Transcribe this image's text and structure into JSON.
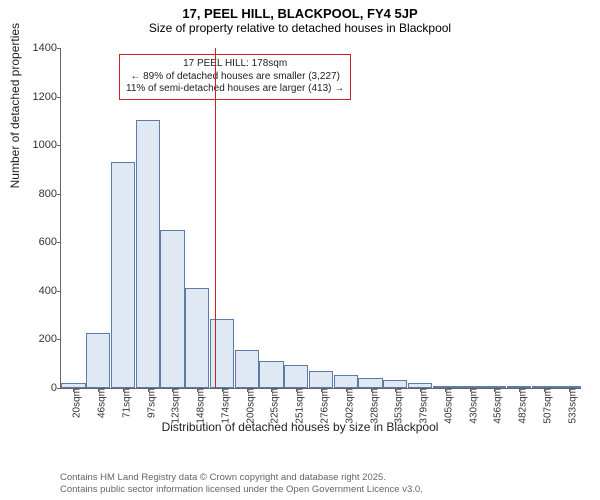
{
  "title_main": "17, PEEL HILL, BLACKPOOL, FY4 5JP",
  "title_sub": "Size of property relative to detached houses in Blackpool",
  "y_axis_label": "Number of detached properties",
  "x_axis_label": "Distribution of detached houses by size in Blackpool",
  "chart": {
    "type": "histogram",
    "ylim": [
      0,
      1400
    ],
    "ytick_step": 200,
    "bar_fill": "#e0e8f4",
    "bar_stroke": "#5b7ba8",
    "background": "#ffffff",
    "ref_line_color": "#cc2222",
    "ref_line_x_index": 6.2,
    "x_labels": [
      "20sqm",
      "46sqm",
      "71sqm",
      "97sqm",
      "123sqm",
      "148sqm",
      "174sqm",
      "200sqm",
      "225sqm",
      "251sqm",
      "276sqm",
      "302sqm",
      "328sqm",
      "353sqm",
      "379sqm",
      "405sqm",
      "430sqm",
      "456sqm",
      "482sqm",
      "507sqm",
      "533sqm"
    ],
    "values": [
      20,
      225,
      930,
      1105,
      650,
      410,
      285,
      155,
      110,
      95,
      70,
      55,
      40,
      35,
      20,
      10,
      5,
      5,
      3,
      2,
      3
    ]
  },
  "annotation": {
    "line1": "17 PEEL HILL: 178sqm",
    "line2": "← 89% of detached houses are smaller (3,227)",
    "line3": "11% of semi-detached houses are larger (413) →"
  },
  "footer": {
    "line1": "Contains HM Land Registry data © Crown copyright and database right 2025.",
    "line2": "Contains public sector information licensed under the Open Government Licence v3.0."
  }
}
